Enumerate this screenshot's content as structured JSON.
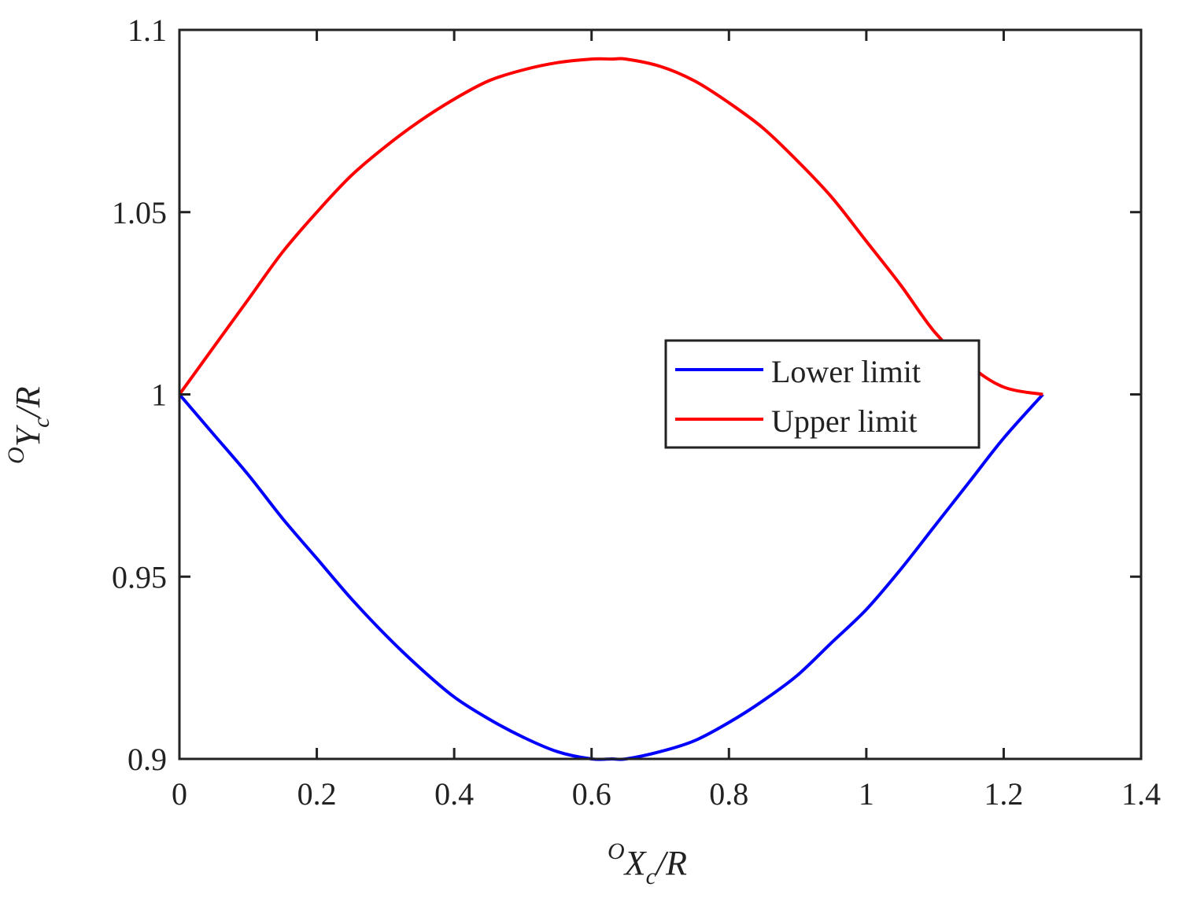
{
  "chart_data": {
    "type": "line",
    "title": "",
    "xlabel": {
      "sup": "O",
      "main": "X",
      "sub": "c",
      "suffix": "/R"
    },
    "ylabel": {
      "sup": "O",
      "main": "Y",
      "sub": "c",
      "suffix": "/R"
    },
    "xlim": [
      0,
      1.4
    ],
    "ylim": [
      0.9,
      1.1
    ],
    "xticks": [
      {
        "value": 0,
        "label": "0"
      },
      {
        "value": 0.2,
        "label": "0.2"
      },
      {
        "value": 0.4,
        "label": "0.4"
      },
      {
        "value": 0.6,
        "label": "0.6"
      },
      {
        "value": 0.8,
        "label": "0.8"
      },
      {
        "value": 1.0,
        "label": "1"
      },
      {
        "value": 1.2,
        "label": "1.2"
      },
      {
        "value": 1.4,
        "label": "1.4"
      }
    ],
    "yticks": [
      {
        "value": 0.9,
        "label": "0.9"
      },
      {
        "value": 0.95,
        "label": "0.95"
      },
      {
        "value": 1.0,
        "label": "1"
      },
      {
        "value": 1.05,
        "label": "1.05"
      },
      {
        "value": 1.1,
        "label": "1.1"
      }
    ],
    "grid": false,
    "legend_position": "center-right",
    "series": [
      {
        "name": "Lower limit",
        "color": "#0000ff",
        "x": [
          0,
          0.05,
          0.1,
          0.15,
          0.2,
          0.25,
          0.3,
          0.35,
          0.4,
          0.45,
          0.5,
          0.55,
          0.6,
          0.63,
          0.65,
          0.7,
          0.75,
          0.8,
          0.85,
          0.9,
          0.95,
          1.0,
          1.05,
          1.1,
          1.15,
          1.2,
          1.257
        ],
        "y": [
          1.0,
          0.989,
          0.978,
          0.966,
          0.955,
          0.944,
          0.934,
          0.925,
          0.917,
          0.911,
          0.906,
          0.902,
          0.9,
          0.9,
          0.9,
          0.902,
          0.905,
          0.91,
          0.916,
          0.923,
          0.932,
          0.941,
          0.952,
          0.964,
          0.976,
          0.988,
          1.0
        ]
      },
      {
        "name": "Upper limit",
        "color": "#ff0000",
        "x": [
          0,
          0.05,
          0.1,
          0.15,
          0.2,
          0.25,
          0.3,
          0.35,
          0.4,
          0.45,
          0.5,
          0.55,
          0.6,
          0.63,
          0.65,
          0.7,
          0.75,
          0.8,
          0.85,
          0.9,
          0.95,
          1.0,
          1.05,
          1.1,
          1.15,
          1.2,
          1.257
        ],
        "y": [
          1.0,
          1.013,
          1.026,
          1.039,
          1.05,
          1.06,
          1.068,
          1.075,
          1.081,
          1.086,
          1.089,
          1.091,
          1.092,
          1.092,
          1.092,
          1.09,
          1.086,
          1.08,
          1.073,
          1.064,
          1.054,
          1.042,
          1.03,
          1.017,
          1.008,
          1.002,
          1.0
        ]
      }
    ]
  }
}
